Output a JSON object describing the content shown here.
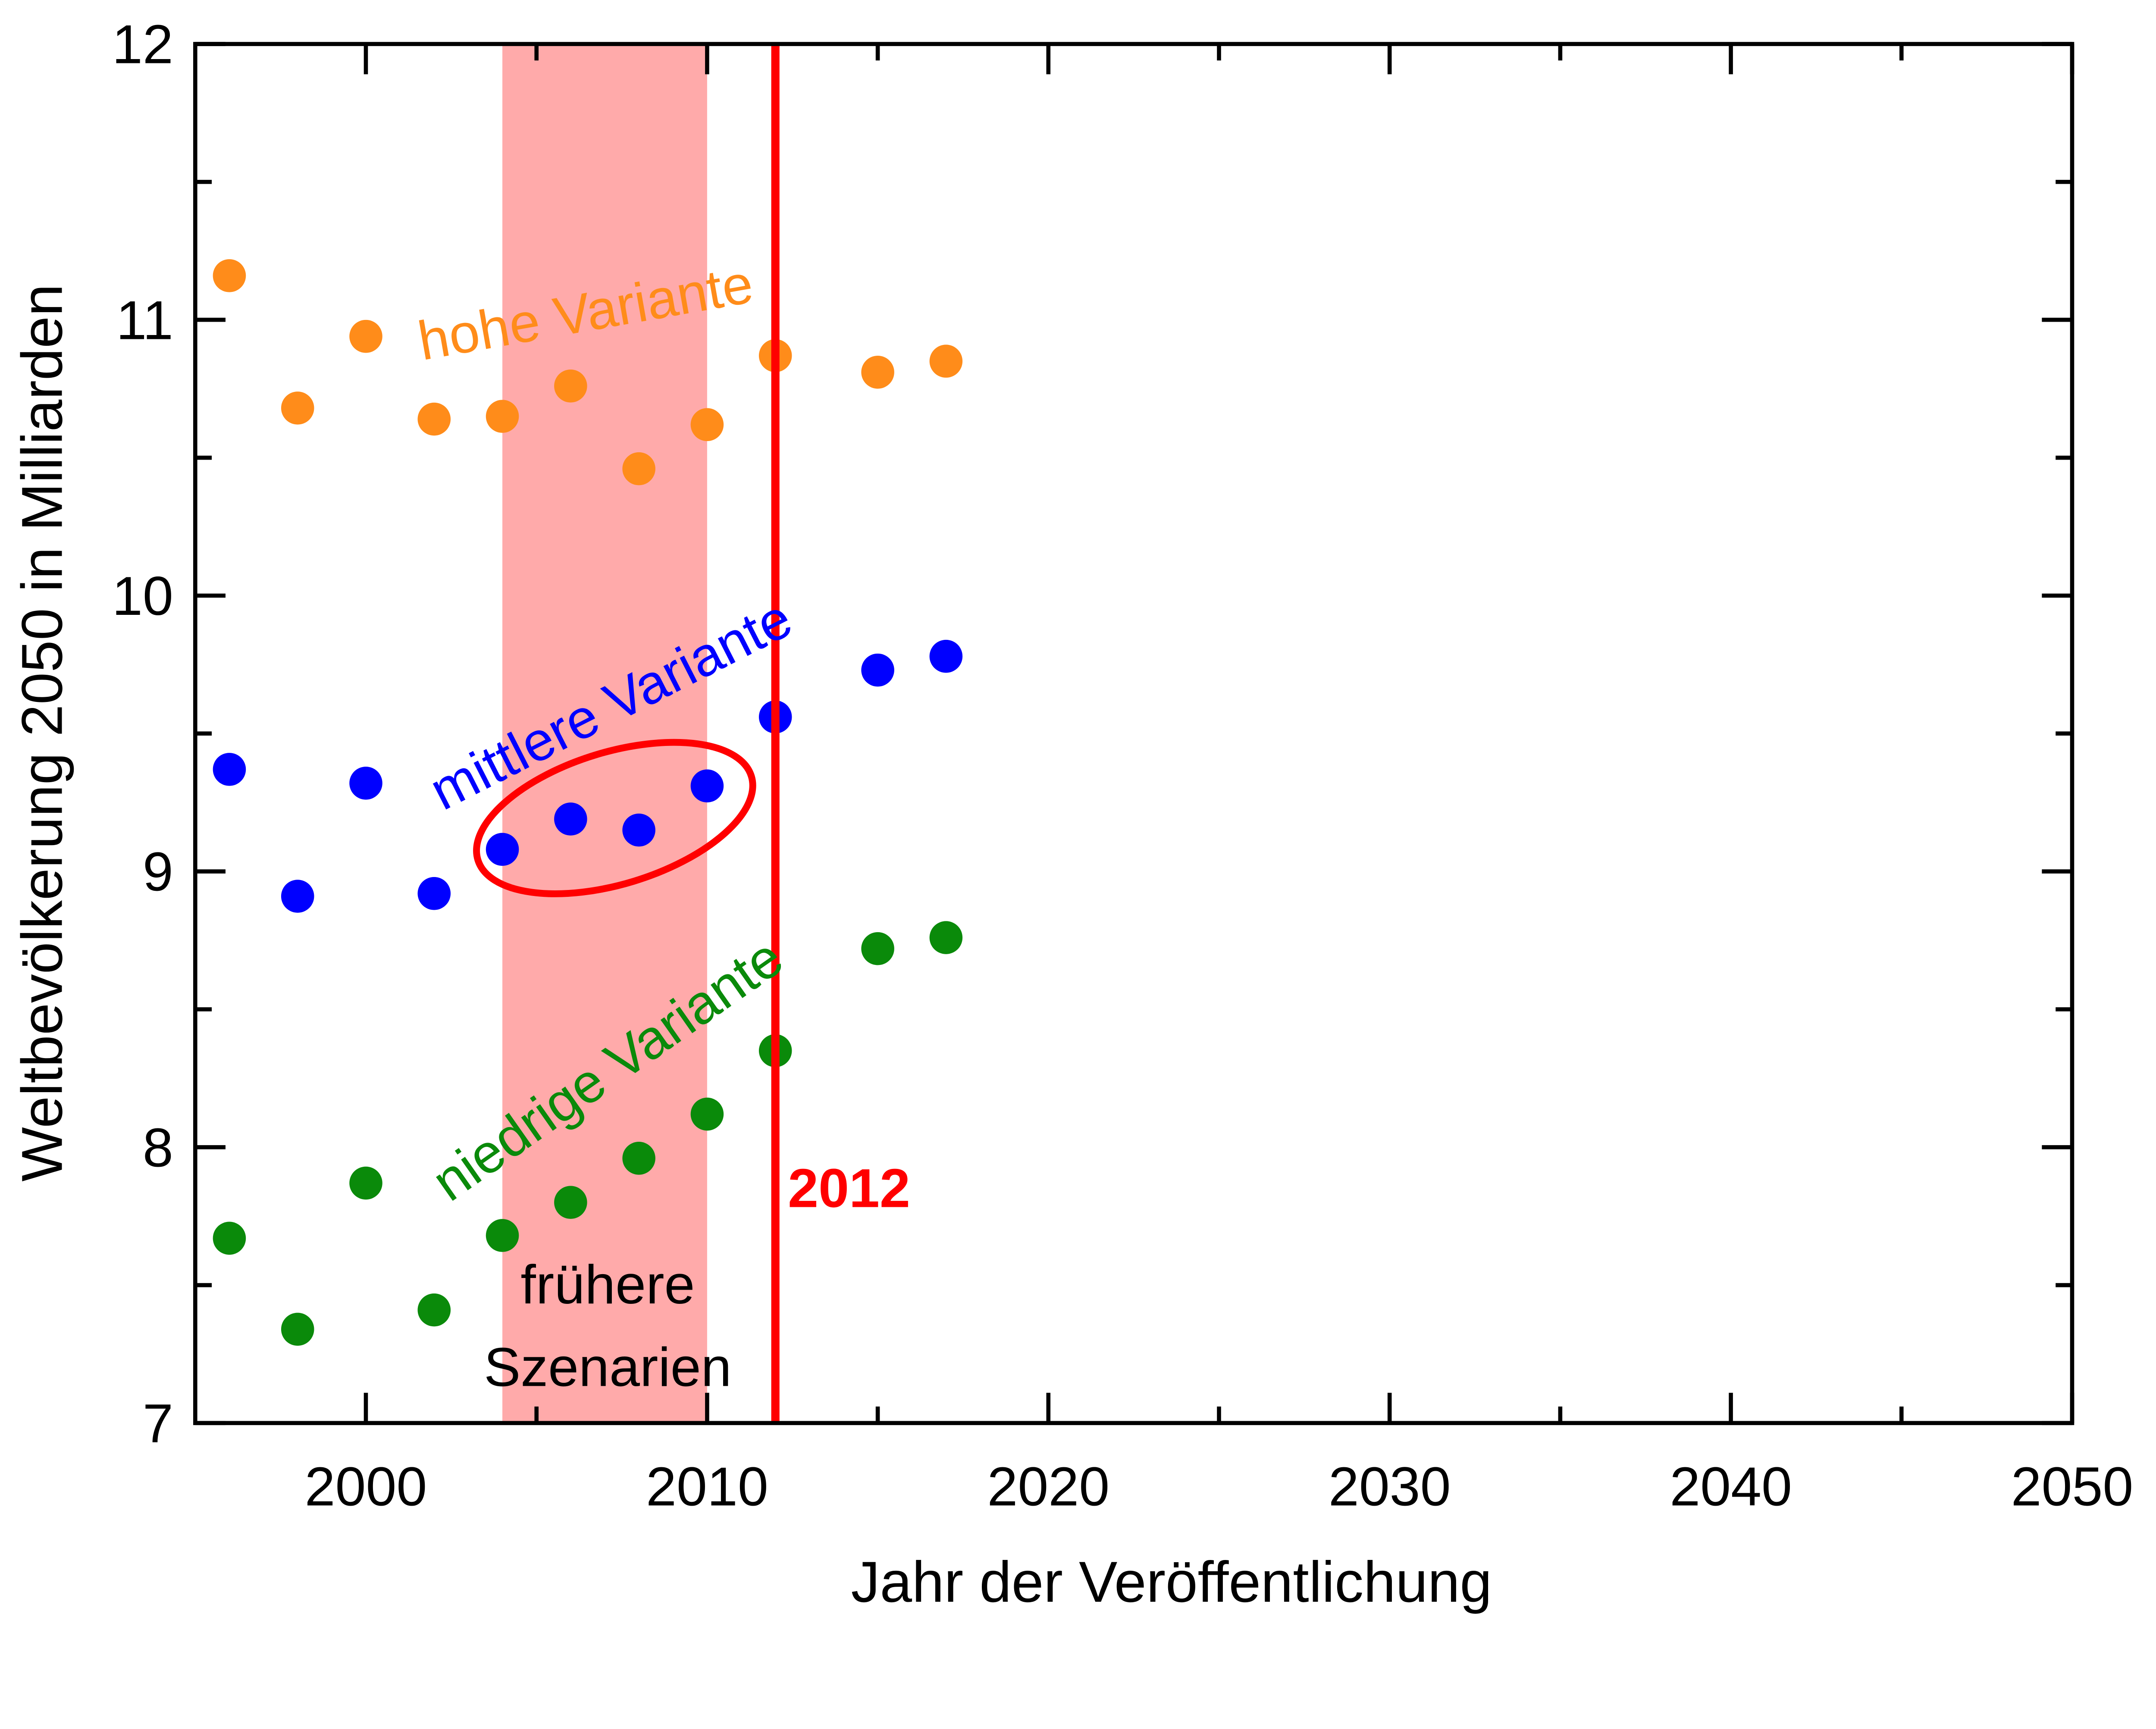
{
  "chart_data": {
    "type": "scatter",
    "xlabel": "Jahr der Veröffentlichung",
    "ylabel": "Weltbevölkerung 2050 in Milliarden",
    "xlim": [
      1995,
      2050
    ],
    "ylim": [
      7,
      12
    ],
    "xticks": [
      2000,
      2010,
      2020,
      2030,
      2040,
      2050
    ],
    "yticks": [
      7,
      8,
      9,
      10,
      11,
      12
    ],
    "x": [
      1996,
      1998,
      2000,
      2002,
      2004,
      2006,
      2008,
      2010,
      2012,
      2015,
      2017
    ],
    "series": [
      {
        "name": "hohe Variante",
        "color": "#ff8c1a",
        "values": [
          11.16,
          10.68,
          10.94,
          10.64,
          10.65,
          10.76,
          10.46,
          10.62,
          10.87,
          10.81,
          10.85
        ]
      },
      {
        "name": "mittlere Variante",
        "color": "#0000ff",
        "values": [
          9.37,
          8.91,
          9.32,
          8.92,
          9.08,
          9.19,
          9.15,
          9.31,
          9.56,
          9.73,
          9.78
        ]
      },
      {
        "name": "niedrige Variante",
        "color": "#0a8a0a",
        "values": [
          7.67,
          7.34,
          7.87,
          7.41,
          7.68,
          7.8,
          7.96,
          8.12,
          8.35,
          8.72,
          8.76
        ]
      }
    ],
    "shaded_region": {
      "x": [
        2004,
        2010
      ],
      "label_line1": "frühere",
      "label_line2": "Szenarien",
      "color": "#ffaaaa"
    },
    "vertical_line": {
      "x": 2012,
      "label": "2012",
      "color": "#ff0000"
    },
    "grid": false
  }
}
